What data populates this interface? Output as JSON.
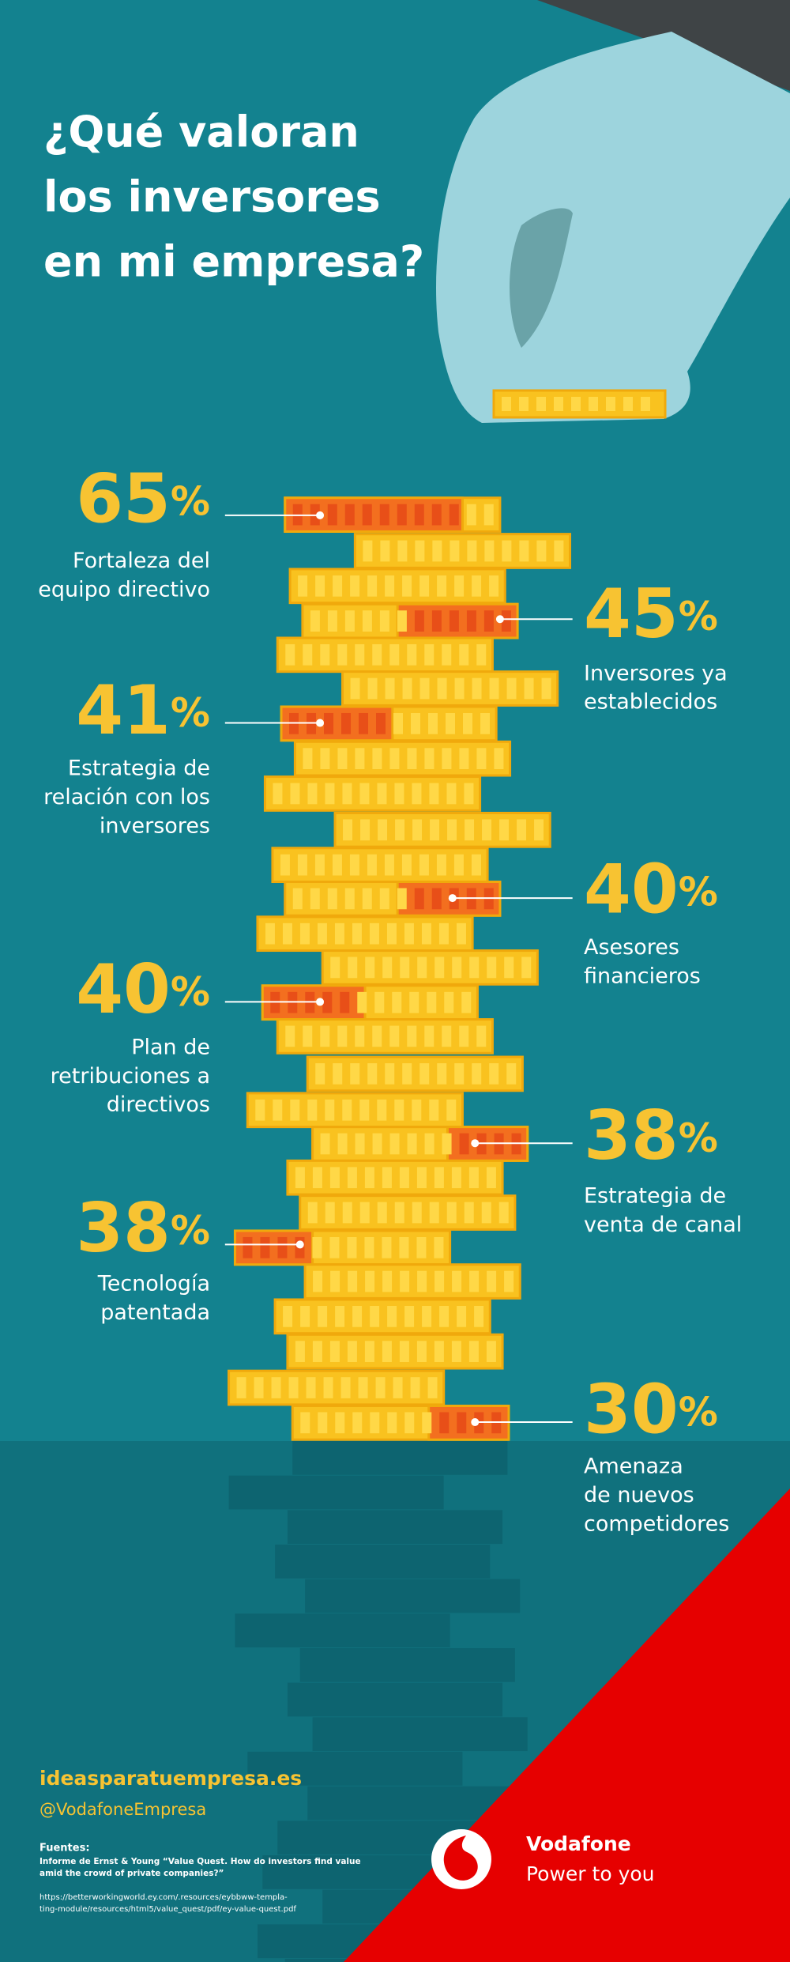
{
  "title": [
    "¿Qué valoran",
    "los inversores",
    "en mi empresa?"
  ],
  "items": [
    {
      "value": 65,
      "unit": "%",
      "label": [
        "Fortaleza del",
        "equipo directivo"
      ]
    },
    {
      "value": 45,
      "unit": "%",
      "label": [
        "Inversores ya",
        "establecidos"
      ]
    },
    {
      "value": 41,
      "unit": "%",
      "label": [
        "Estrategia de",
        "relación con los",
        "inversores"
      ]
    },
    {
      "value": 40,
      "unit": "%",
      "label": [
        "Asesores",
        "financieros"
      ]
    },
    {
      "value": 40,
      "unit": "%",
      "label": [
        "Plan de",
        "retribuciones a",
        "directivos"
      ]
    },
    {
      "value": 38,
      "unit": "%",
      "label": [
        "Estrategia de",
        "venta de canal"
      ]
    },
    {
      "value": 38,
      "unit": "%",
      "label": [
        "Tecnología",
        "patentada"
      ]
    },
    {
      "value": 30,
      "unit": "%",
      "label": [
        "Amenaza",
        "de nuevos",
        "competidores"
      ]
    }
  ],
  "footer": {
    "site": "ideasparatuempresa.es",
    "handle": "@VodafoneEmpresa",
    "sources_heading": "Fuentes:",
    "sources": [
      "Informe de Ernst & Young “Value Quest. How do investors find value",
      "amid the crowd of private companies?”"
    ],
    "url": [
      "https://betterworkingworld.ey.com/.resources/eybbww-templa-",
      "ting-module/resources/html5/value_quest/pdf/ey-value-quest.pdf"
    ]
  },
  "brand": {
    "name": "Vodafone",
    "tagline": "Power to you"
  }
}
